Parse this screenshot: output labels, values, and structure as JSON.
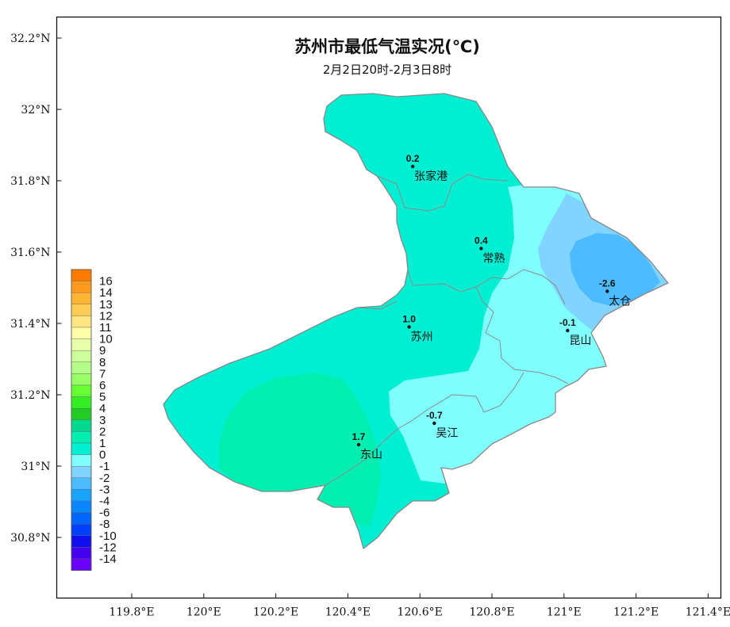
{
  "title": "苏州市最低气温实况(℃)",
  "subtitle": "2月2日20时-2月3日8时",
  "lat_ticks": [
    {
      "label": "32.2°N",
      "lat": 32.2
    },
    {
      "label": "32°N",
      "lat": 32.0
    },
    {
      "label": "31.8°N",
      "lat": 31.8
    },
    {
      "label": "31.6°N",
      "lat": 31.6
    },
    {
      "label": "31.4°N",
      "lat": 31.4
    },
    {
      "label": "31.2°N",
      "lat": 31.2
    },
    {
      "label": "31°N",
      "lat": 31.0
    },
    {
      "label": "30.8°N",
      "lat": 30.8
    }
  ],
  "lon_ticks": [
    {
      "label": "119.8°E",
      "lon": 119.8
    },
    {
      "label": "120°E",
      "lon": 120.0
    },
    {
      "label": "120.2°E",
      "lon": 120.2
    },
    {
      "label": "120.4°E",
      "lon": 120.4
    },
    {
      "label": "120.6°E",
      "lon": 120.6
    },
    {
      "label": "120.8°E",
      "lon": 120.8
    },
    {
      "label": "121°E",
      "lon": 121.0
    },
    {
      "label": "121.2°E",
      "lon": 121.2
    },
    {
      "label": "121.4°E",
      "lon": 121.4
    }
  ],
  "stations": [
    {
      "name": "张家港",
      "value": "0.2",
      "lon": 120.58,
      "lat": 31.84
    },
    {
      "name": "常熟",
      "value": "0.4",
      "lon": 120.77,
      "lat": 31.61
    },
    {
      "name": "太仓",
      "value": "-2.6",
      "lon": 121.12,
      "lat": 31.49
    },
    {
      "name": "苏州",
      "value": "1.0",
      "lon": 120.57,
      "lat": 31.39
    },
    {
      "name": "昆山",
      "value": "-0.1",
      "lon": 121.01,
      "lat": 31.38
    },
    {
      "name": "吴江",
      "value": "-0.7",
      "lon": 120.64,
      "lat": 31.12
    },
    {
      "name": "东山",
      "value": "1.7",
      "lon": 120.43,
      "lat": 31.06
    }
  ],
  "legend": [
    {
      "label": "16",
      "color": "#ff7a00"
    },
    {
      "label": "14",
      "color": "#ff9a1e"
    },
    {
      "label": "13",
      "color": "#ffb432"
    },
    {
      "label": "12",
      "color": "#ffcc55"
    },
    {
      "label": "11",
      "color": "#ffe680"
    },
    {
      "label": "10",
      "color": "#ffffaa"
    },
    {
      "label": "9",
      "color": "#e8ffaa"
    },
    {
      "label": "8",
      "color": "#ccff99"
    },
    {
      "label": "7",
      "color": "#b4ff8a"
    },
    {
      "label": "6",
      "color": "#99ff66"
    },
    {
      "label": "5",
      "color": "#66ff33"
    },
    {
      "label": "4",
      "color": "#33ee22"
    },
    {
      "label": "3",
      "color": "#22cc22"
    },
    {
      "label": "2",
      "color": "#00d98f"
    },
    {
      "label": "1",
      "color": "#00efb0"
    },
    {
      "label": "0",
      "color": "#00efd2"
    },
    {
      "label": "-1",
      "color": "#80ffff"
    },
    {
      "label": "-2",
      "color": "#80d4ff"
    },
    {
      "label": "-3",
      "color": "#4dbbff"
    },
    {
      "label": "-4",
      "color": "#1aa3ff"
    },
    {
      "label": "-6",
      "color": "#0a86ff"
    },
    {
      "label": "-8",
      "color": "#0066ff"
    },
    {
      "label": "-10",
      "color": "#0040ff"
    },
    {
      "label": "-12",
      "color": "#1010ee"
    },
    {
      "label": "-14",
      "color": "#4400ee"
    },
    {
      "label": "",
      "color": "#6a00ff"
    }
  ],
  "colors": {
    "region_0_1": "#00efd2",
    "region_1_2": "#00efb0",
    "region_m1_0": "#80ffff",
    "region_m2_m1": "#80d4ff",
    "region_m3_m2": "#4dbbff",
    "boundary": "#888888"
  }
}
